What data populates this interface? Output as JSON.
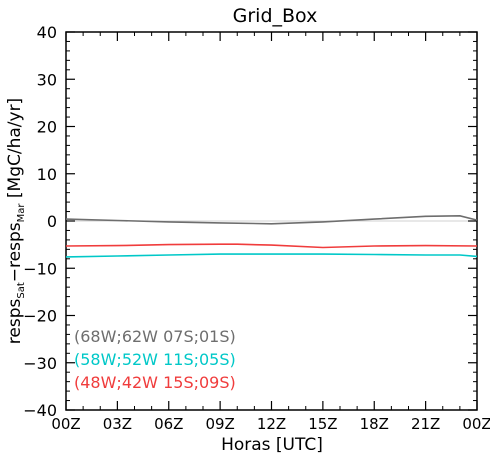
{
  "chart_data": {
    "type": "line",
    "title": "Grid_Box",
    "xlabel": "Horas [UTC]",
    "ylabel": {
      "prefix": "resps",
      "sub1": "Sat",
      "mid": "−resps",
      "sub2": "Mar",
      "suffix": " [MgC/ha/yr]"
    },
    "ylim": [
      -40,
      40
    ],
    "y_ticks": [
      -40,
      -30,
      -20,
      -10,
      0,
      10,
      20,
      30,
      40
    ],
    "y_tick_labels": [
      "−40",
      "−30",
      "−20",
      "−10",
      "0",
      "10",
      "20",
      "30",
      "40"
    ],
    "x_tick_labels": [
      "00Z",
      "03Z",
      "06Z",
      "09Z",
      "12Z",
      "15Z",
      "18Z",
      "21Z",
      "00Z"
    ],
    "x_range": [
      0,
      24
    ],
    "zero_line": true,
    "grid": false,
    "legend_position": "bottom-left",
    "series": [
      {
        "name": "(68W;62W 07S;01S)",
        "color": "#6e6e6e",
        "x": [
          0,
          3,
          6,
          9,
          12,
          15,
          18,
          21,
          23,
          24
        ],
        "values": [
          0.4,
          0.1,
          -0.2,
          -0.4,
          -0.6,
          -0.2,
          0.4,
          1.0,
          1.1,
          0.2
        ]
      },
      {
        "name": "(58W;52W 11S;05S)",
        "color": "#00c8c8",
        "x": [
          0,
          3,
          6,
          9,
          12,
          15,
          18,
          21,
          23,
          24
        ],
        "values": [
          -7.6,
          -7.4,
          -7.2,
          -7.0,
          -7.0,
          -7.0,
          -7.1,
          -7.2,
          -7.2,
          -7.5
        ]
      },
      {
        "name": "(48W;42W 15S;09S)",
        "color": "#f03c3c",
        "x": [
          0,
          3,
          6,
          9,
          10,
          12,
          15,
          18,
          21,
          24
        ],
        "values": [
          -5.3,
          -5.2,
          -5.0,
          -4.9,
          -4.9,
          -5.1,
          -5.6,
          -5.3,
          -5.2,
          -5.3
        ]
      }
    ]
  }
}
